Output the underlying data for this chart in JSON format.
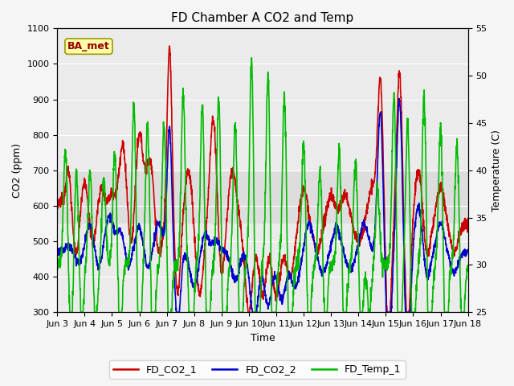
{
  "title": "FD Chamber A CO2 and Temp",
  "xlabel": "Time",
  "ylabel_left": "CO2 (ppm)",
  "ylabel_right": "Temperature (C)",
  "ylim_left": [
    300,
    1100
  ],
  "ylim_right": [
    25,
    55
  ],
  "xlim": [
    0,
    15
  ],
  "xtick_labels": [
    "Jun 3",
    "Jun 4",
    "Jun 5",
    "Jun 6",
    "Jun 7",
    "Jun 8",
    "Jun 9",
    "Jun 10",
    "Jun 11",
    "Jun 12",
    "Jun 13",
    "Jun 14",
    "Jun 15",
    "Jun 16",
    "Jun 17",
    "Jun 18"
  ],
  "xtick_positions": [
    0,
    1,
    2,
    3,
    4,
    5,
    6,
    7,
    8,
    9,
    10,
    11,
    12,
    13,
    14,
    15
  ],
  "ytick_left": [
    300,
    400,
    500,
    600,
    700,
    800,
    900,
    1000,
    1100
  ],
  "ytick_right": [
    25,
    30,
    35,
    40,
    45,
    50,
    55
  ],
  "color_co2_1": "#cc0000",
  "color_co2_2": "#0000cc",
  "color_temp_1": "#00bb00",
  "ba_met_label": "BA_met",
  "ba_met_color": "#990000",
  "ba_met_bg": "#ffffaa",
  "ba_met_edge": "#999900",
  "shade_band_low": 550,
  "shade_band_high": 700,
  "plot_bg_color": "#ebebeb",
  "fig_bg_color": "#f5f5f5",
  "grid_color": "#ffffff",
  "title_fontsize": 11,
  "axis_label_fontsize": 9,
  "tick_fontsize": 8,
  "legend_fontsize": 9,
  "linewidth": 1.2
}
